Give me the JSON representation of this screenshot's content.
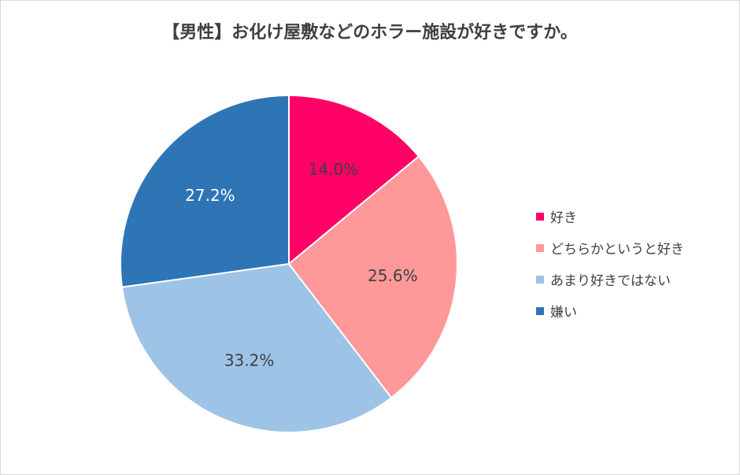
{
  "chart_data": {
    "type": "pie",
    "title": "【男性】お化け屋敷などのホラー施設が好きですか。",
    "categories": [
      "好き",
      "どちらかというと好き",
      "あまり好きではない",
      "嫌い"
    ],
    "values": [
      14.0,
      25.6,
      33.2,
      27.2
    ],
    "labels": [
      "14.0%",
      "25.6%",
      "33.2%",
      "27.2%"
    ],
    "colors": [
      "#ff0066",
      "#ff9999",
      "#9dc3e6",
      "#2e75b6"
    ],
    "label_colors": [
      "#404040",
      "#404040",
      "#404040",
      "#ffffff"
    ],
    "legend_position": "right"
  }
}
